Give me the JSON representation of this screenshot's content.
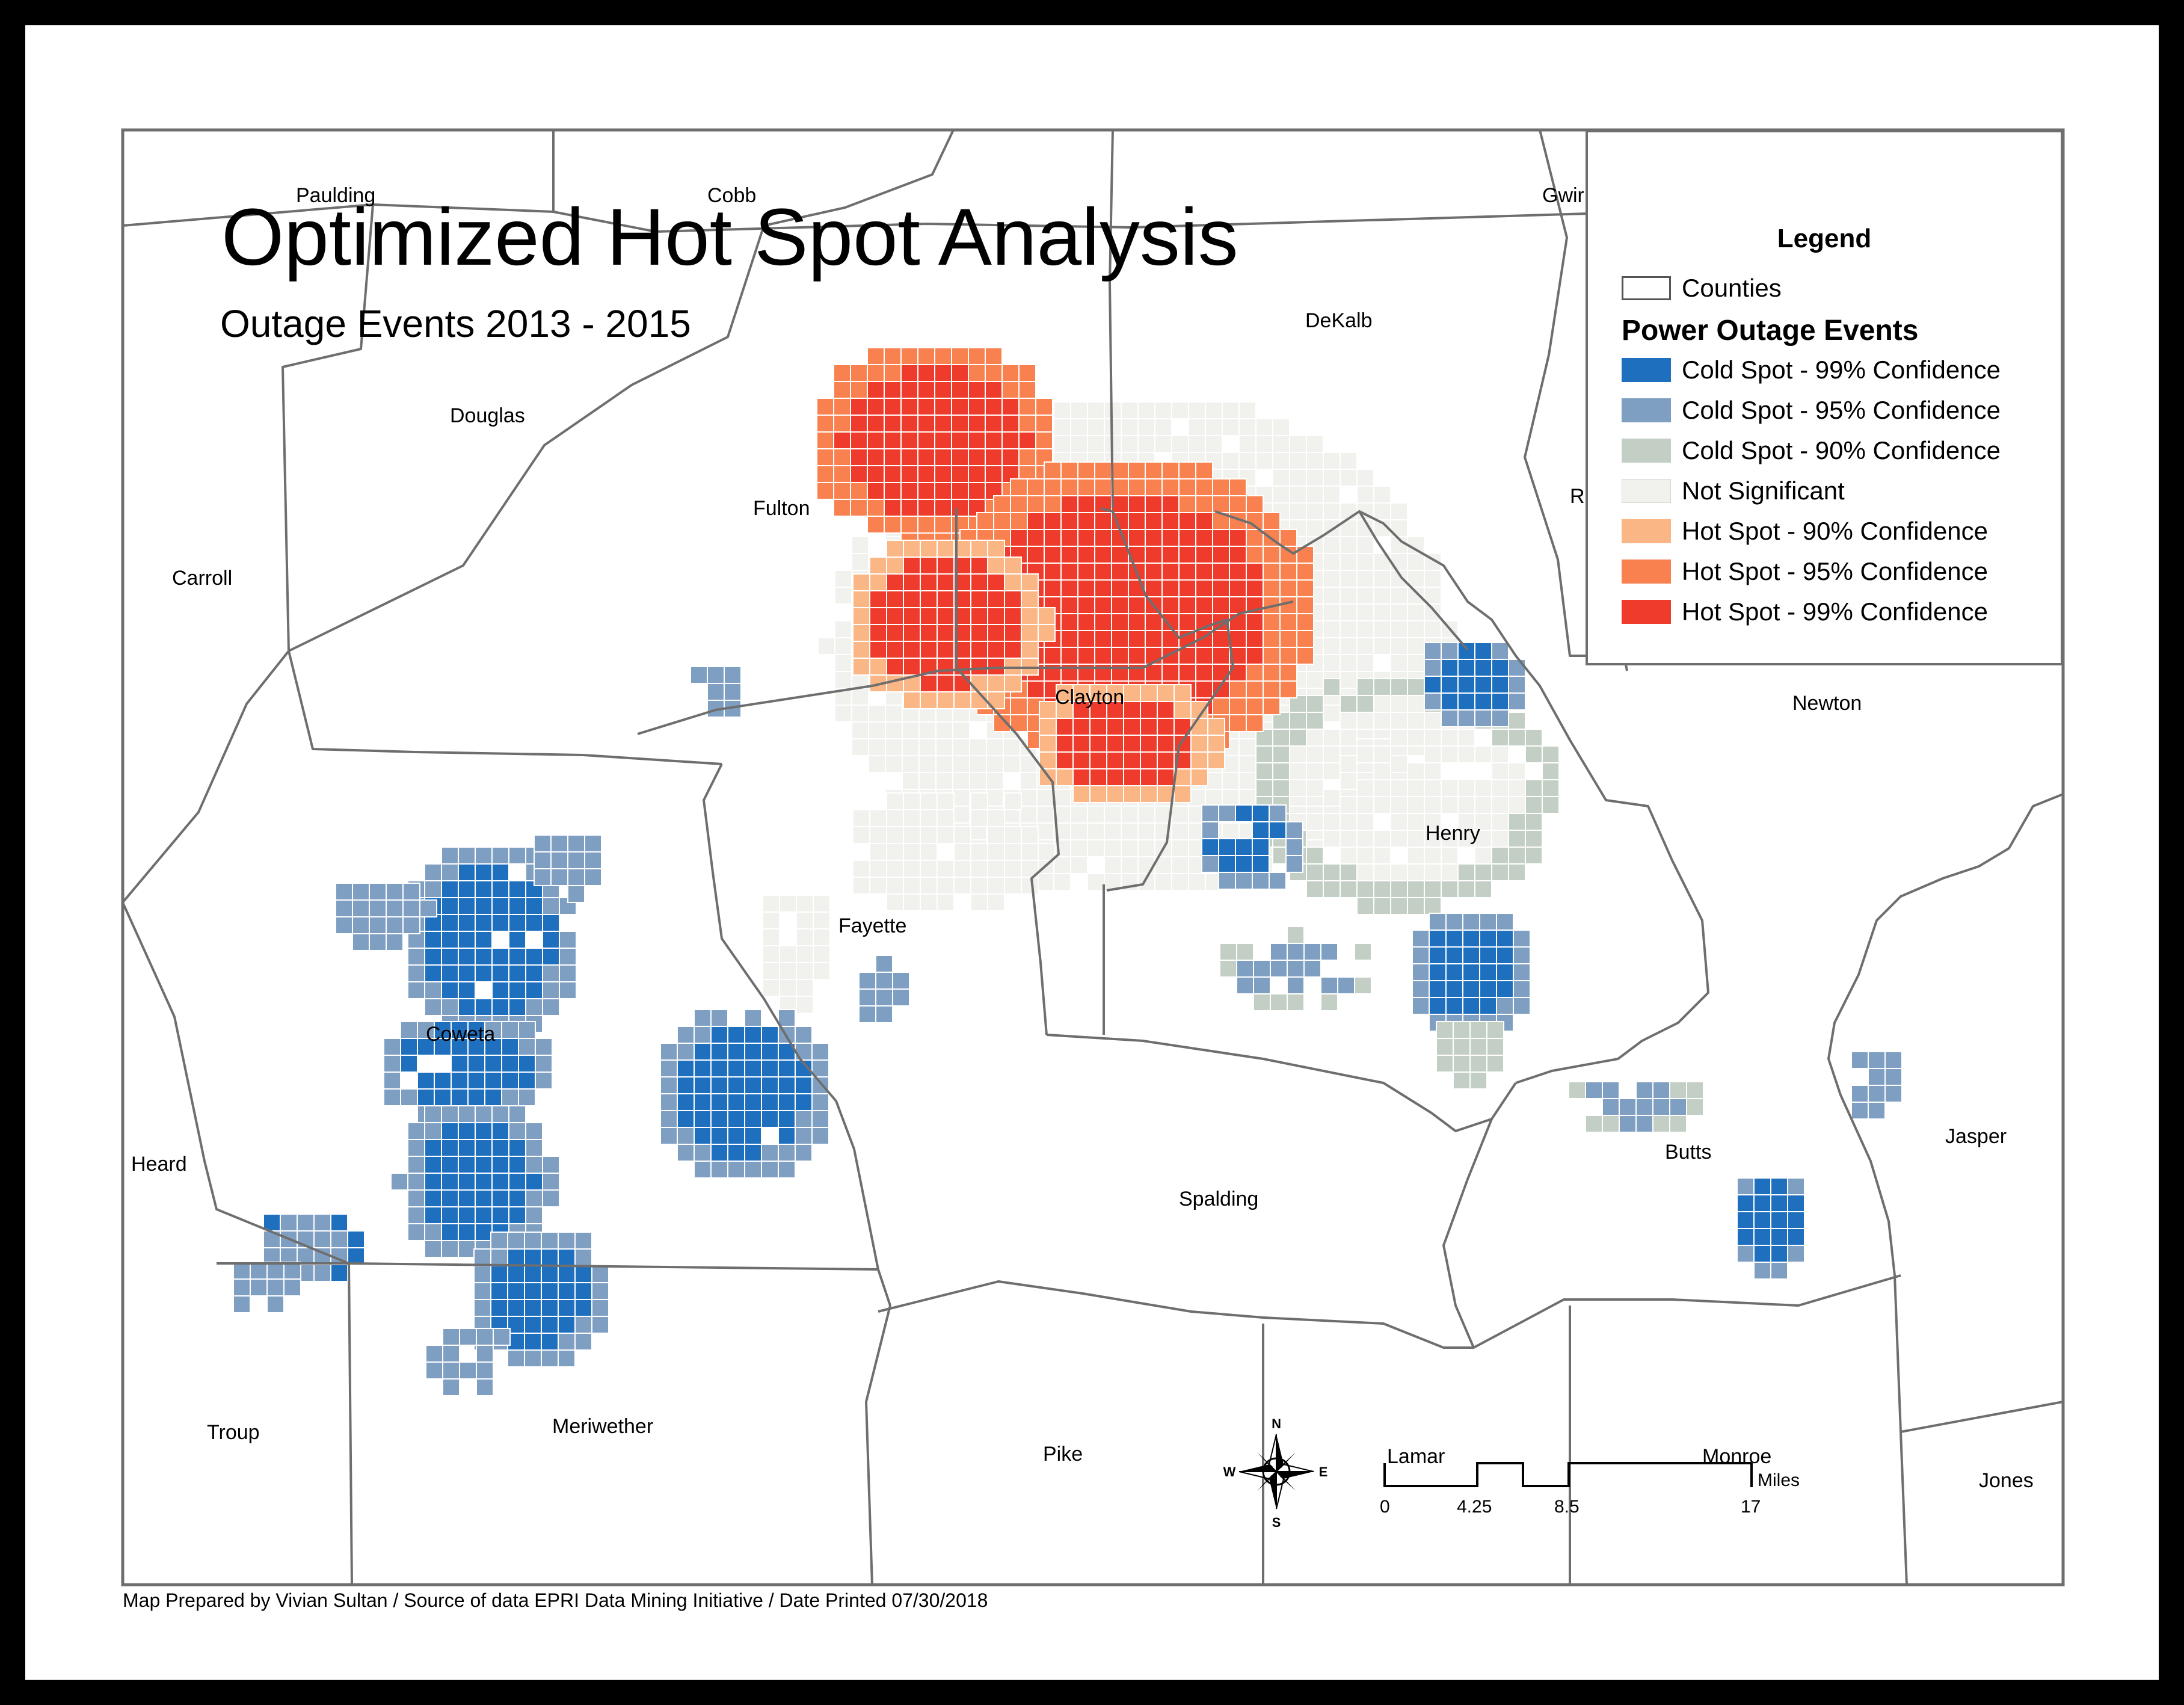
{
  "title": "Optimized Hot Spot Analysis",
  "subtitle": "Outage Events 2013 - 2015",
  "legend": {
    "title": "Legend",
    "counties_label": "Counties",
    "group_title": "Power Outage Events",
    "items": [
      {
        "label": "Cold Spot - 99% Confidence",
        "color": "#1f6fbf"
      },
      {
        "label": "Cold Spot - 95% Confidence",
        "color": "#7f9fc2"
      },
      {
        "label": "Cold Spot - 90% Confidence",
        "color": "#c3cfc4"
      },
      {
        "label": "Not Significant",
        "color": "#f1f2ed"
      },
      {
        "label": "Hot Spot - 90% Confidence",
        "color": "#fbb685"
      },
      {
        "label": "Hot Spot - 95% Confidence",
        "color": "#f8814f"
      },
      {
        "label": "Hot Spot - 99% Confidence",
        "color": "#ef3b2c"
      }
    ]
  },
  "counties": {
    "paulding": "Paulding",
    "cobb": "Cobb",
    "gwinnett": "Gwir",
    "dekalb": "DeKalb",
    "douglas": "Douglas",
    "fulton": "Fulton",
    "rockdale": "R",
    "carroll": "Carroll",
    "clayton": "Clayton",
    "newton": "Newton",
    "henry": "Henry",
    "fayette": "Fayette",
    "coweta": "Coweta",
    "heard": "Heard",
    "butts": "Butts",
    "jasper": "Jasper",
    "spalding": "Spalding",
    "troup": "Troup",
    "meriwether": "Meriwether",
    "pike": "Pike",
    "lamar": "Lamar",
    "monroe": "Monroe",
    "jones": "Jones"
  },
  "north_arrow": {
    "n": "N",
    "s": "S",
    "e": "E",
    "w": "W"
  },
  "scale_bar": {
    "ticks": [
      "0",
      "4.25",
      "8.5",
      "17"
    ],
    "unit": "Miles"
  },
  "footer": "Map Prepared by Vivian Sultan / Source of data EPRI Data Mining Initiative / Date Printed 07/30/2018"
}
